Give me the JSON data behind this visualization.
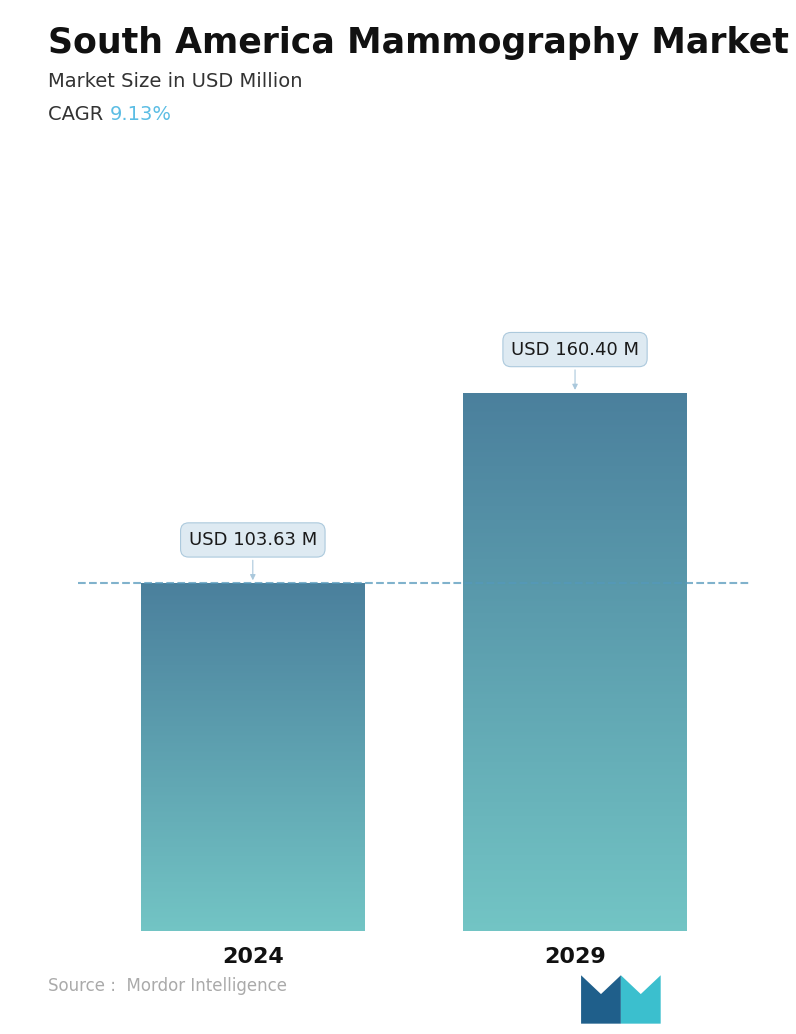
{
  "title": "South America Mammography Market",
  "subtitle": "Market Size in USD Million",
  "cagr_label": "CAGR ",
  "cagr_value": "9.13%",
  "cagr_color": "#5BBDE4",
  "categories": [
    "2024",
    "2029"
  ],
  "values": [
    103.63,
    160.4
  ],
  "labels": [
    "USD 103.63 M",
    "USD 160.40 M"
  ],
  "bar_color_top": "#4a7f9c",
  "bar_color_bottom": "#72c4c4",
  "dashed_line_color": "#5599bb",
  "dashed_line_value": 103.63,
  "source_text": "Source :  Mordor Intelligence",
  "source_color": "#aaaaaa",
  "background_color": "#ffffff",
  "title_fontsize": 25,
  "subtitle_fontsize": 14,
  "cagr_fontsize": 14,
  "label_fontsize": 13,
  "tick_fontsize": 16,
  "source_fontsize": 12,
  "ylim": [
    0,
    185
  ],
  "bar_width": 0.32,
  "positions": [
    0.27,
    0.73
  ]
}
